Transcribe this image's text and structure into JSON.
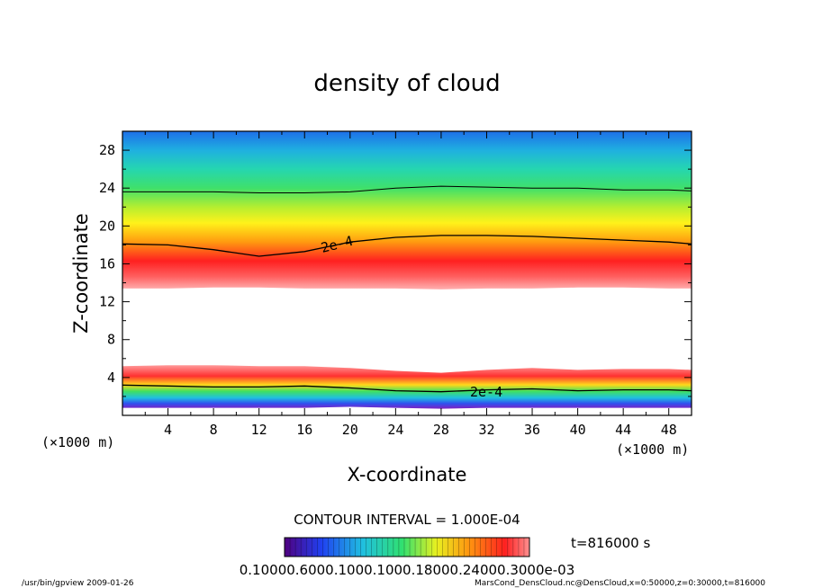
{
  "chart_data": {
    "type": "heatmap",
    "title": "density of cloud",
    "xlabel": "X-coordinate",
    "ylabel": "Z-coordinate",
    "x_unit": "(×1000 m)",
    "z_unit": "(×1000 m)",
    "xlim": [
      0,
      50
    ],
    "ylim": [
      0,
      30
    ],
    "x_ticks": [
      "4",
      "8",
      "12",
      "16",
      "20",
      "24",
      "28",
      "32",
      "36",
      "40",
      "44",
      "48"
    ],
    "y_ticks": [
      "4",
      "8",
      "12",
      "16",
      "20",
      "24",
      "28"
    ],
    "contour_labels": [
      "2e-4",
      "2e-4"
    ],
    "contour_interval_text": "CONTOUR INTERVAL = 1.000E-04",
    "time_text": "t=816000 s",
    "colorbar_text": "0.10000.6000.1000.1000.18000.24000.3000e-03",
    "upper_layer": {
      "x": [
        0,
        4,
        8,
        12,
        16,
        20,
        24,
        28,
        32,
        36,
        40,
        44,
        48,
        50
      ],
      "top_contour_z": [
        23.6,
        23.6,
        23.6,
        23.5,
        23.5,
        23.6,
        24,
        24.2,
        24.1,
        24,
        24,
        23.8,
        23.8,
        23.7
      ],
      "label_contour_z": [
        18.1,
        18,
        17.5,
        16.8,
        17.3,
        18.3,
        18.8,
        19,
        19,
        18.9,
        18.7,
        18.5,
        18.3,
        18.1
      ],
      "bottom_z": [
        13.4,
        13.4,
        13.5,
        13.5,
        13.4,
        13.4,
        13.4,
        13.3,
        13.4,
        13.4,
        13.5,
        13.5,
        13.4,
        13.4
      ]
    },
    "lower_layer": {
      "x": [
        0,
        4,
        8,
        12,
        16,
        20,
        24,
        28,
        32,
        36,
        40,
        44,
        48,
        50
      ],
      "top_z": [
        5.2,
        5.3,
        5.3,
        5.2,
        5.2,
        5.0,
        4.7,
        4.5,
        4.8,
        5.0,
        4.8,
        4.9,
        4.9,
        4.8
      ],
      "label_contour_z": [
        3.2,
        3.1,
        3.0,
        3.0,
        3.1,
        2.9,
        2.6,
        2.5,
        2.7,
        2.8,
        2.6,
        2.7,
        2.7,
        2.6
      ],
      "bottom_z": [
        0.8,
        0.8,
        0.8,
        0.8,
        0.8,
        0.9,
        0.8,
        0.7,
        0.8,
        0.8,
        0.8,
        0.8,
        0.8,
        0.8
      ]
    }
  },
  "footer": {
    "left": "/usr/bin/gpview  2009-01-26",
    "right": "MarsCond_DensCloud.nc@DensCloud,x=0:50000,z=0:30000,t=816000"
  }
}
